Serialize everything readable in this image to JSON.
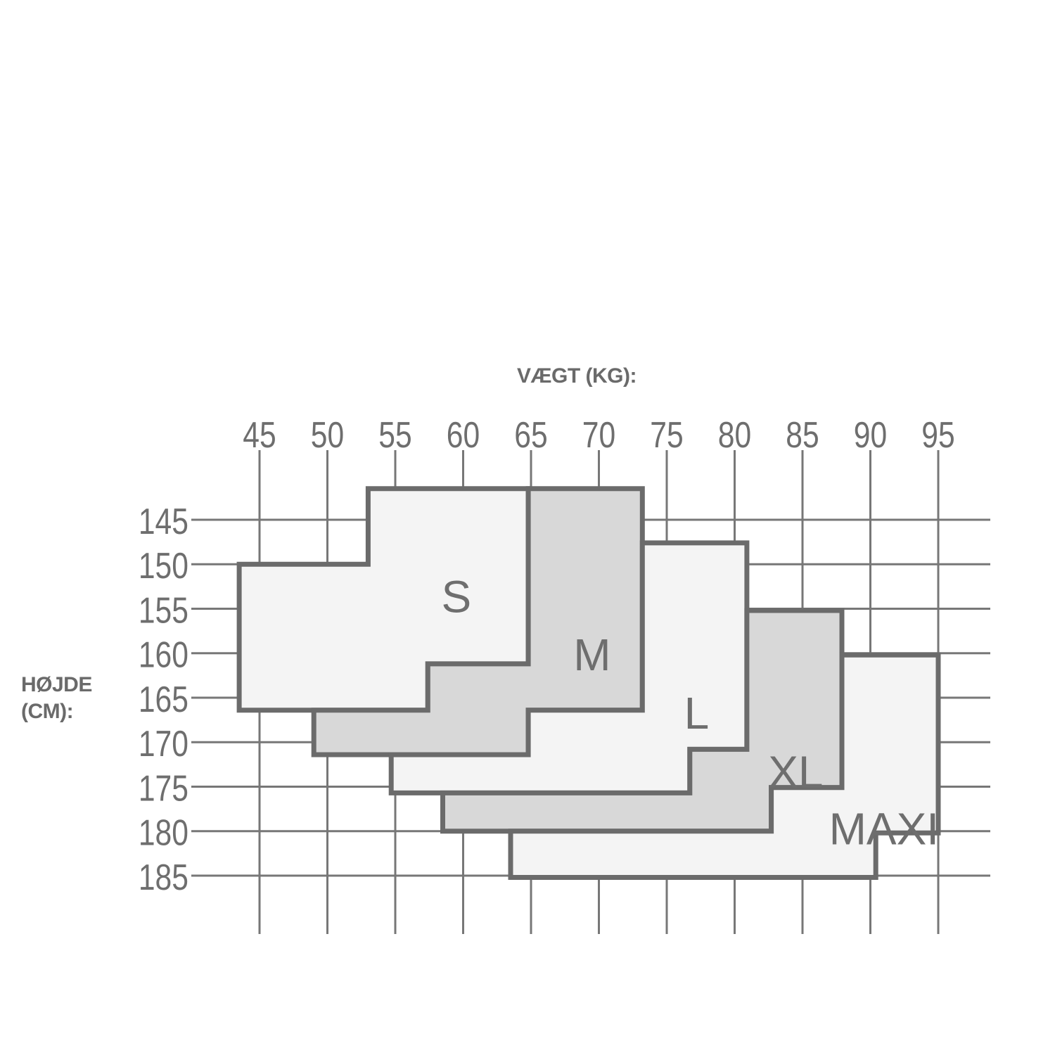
{
  "chart_data": {
    "type": "region-chart",
    "xlabel": "VÆGT (KG):",
    "ylabel_lines": [
      "HØJDE",
      "(CM):"
    ],
    "x_ticks": [
      45,
      50,
      55,
      60,
      65,
      70,
      75,
      80,
      85,
      90,
      95
    ],
    "y_ticks": [
      145,
      150,
      155,
      160,
      165,
      170,
      175,
      180,
      185
    ],
    "x_axis_position": "top",
    "y_axis_reversed": true,
    "grid": true,
    "colors": {
      "grid": "#777777",
      "outline": "#6b6b6b",
      "light_fill": "#f4f4f4",
      "dark_fill": "#d8d8d8",
      "text": "#6e6e6e"
    },
    "regions": [
      {
        "name": "S",
        "fill": "#f4f4f4",
        "label_at": [
          59.5,
          153.5
        ],
        "vertices_kg_cm": [
          [
            53,
            141.5
          ],
          [
            64.8,
            141.5
          ],
          [
            64.8,
            161.2
          ],
          [
            57.4,
            161.2
          ],
          [
            57.4,
            166.4
          ],
          [
            43.5,
            166.4
          ],
          [
            43.5,
            150
          ],
          [
            53,
            150
          ]
        ]
      },
      {
        "name": "M",
        "fill": "#d8d8d8",
        "label_at": [
          69.5,
          160
        ],
        "vertices_kg_cm": [
          [
            64.8,
            141.5
          ],
          [
            73.2,
            141.5
          ],
          [
            73.2,
            166.4
          ],
          [
            64.8,
            166.4
          ],
          [
            64.8,
            171.4
          ],
          [
            49,
            171.4
          ],
          [
            49,
            166.4
          ],
          [
            57.4,
            166.4
          ],
          [
            57.4,
            161.2
          ],
          [
            64.8,
            161.2
          ]
        ]
      },
      {
        "name": "L",
        "fill": "#f4f4f4",
        "label_at": [
          77.2,
          166.6
        ],
        "vertices_kg_cm": [
          [
            73.2,
            147.6
          ],
          [
            80.9,
            147.6
          ],
          [
            80.9,
            170.8
          ],
          [
            76.7,
            170.8
          ],
          [
            76.7,
            175.7
          ],
          [
            54.7,
            175.7
          ],
          [
            54.7,
            171.4
          ],
          [
            64.8,
            171.4
          ],
          [
            64.8,
            166.4
          ],
          [
            73.2,
            166.4
          ]
        ]
      },
      {
        "name": "XL",
        "fill": "#d8d8d8",
        "label_at": [
          84.5,
          173.2
        ],
        "vertices_kg_cm": [
          [
            80.9,
            155.2
          ],
          [
            87.9,
            155.2
          ],
          [
            87.9,
            175.1
          ],
          [
            82.7,
            175.1
          ],
          [
            82.7,
            180
          ],
          [
            58.5,
            180
          ],
          [
            58.5,
            175.7
          ],
          [
            76.7,
            175.7
          ],
          [
            76.7,
            170.8
          ],
          [
            80.9,
            170.8
          ]
        ]
      },
      {
        "name": "MAXI",
        "fill": "#f4f4f4",
        "label_at": [
          91,
          179.6
        ],
        "vertices_kg_cm": [
          [
            87.9,
            160.2
          ],
          [
            95,
            160.2
          ],
          [
            95,
            180.2
          ],
          [
            90.4,
            180.2
          ],
          [
            90.4,
            185.2
          ],
          [
            63.5,
            185.2
          ],
          [
            63.5,
            180
          ],
          [
            82.7,
            180
          ],
          [
            82.7,
            175.1
          ],
          [
            87.9,
            175.1
          ]
        ]
      }
    ]
  }
}
